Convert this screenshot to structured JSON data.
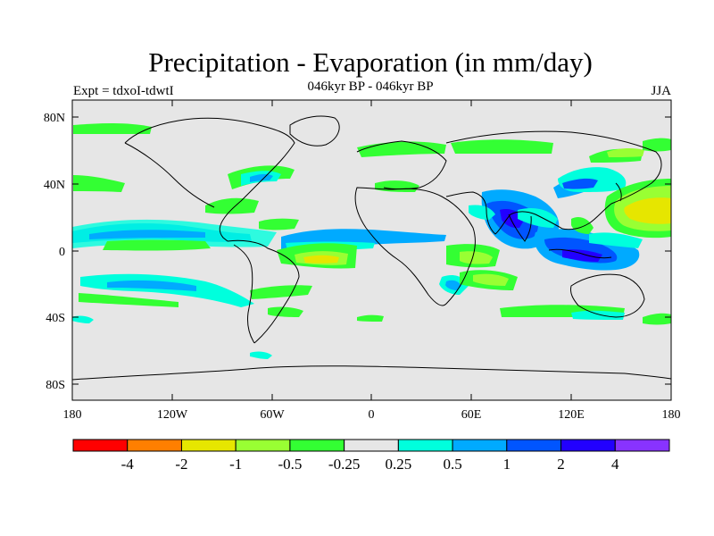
{
  "title": "Precipitation - Evaporation (in mm/day)",
  "subtitle": "046kyr BP - 046kyr BP",
  "left_label": "Expt = tdxoI-tdwtI",
  "right_label": "JJA",
  "lat_ticks": [
    "80N",
    "40N",
    "0",
    "40S",
    "80S"
  ],
  "lon_ticks": [
    "180",
    "120W",
    "60W",
    "0",
    "60E",
    "120E",
    "180"
  ],
  "colorbar": {
    "labels": [
      "-4",
      "-2",
      "-1",
      "-0.5",
      "-0.25",
      "0.25",
      "0.5",
      "1",
      "2",
      "4"
    ],
    "colors": [
      "#ff0000",
      "#ff7f00",
      "#e6e600",
      "#99ff33",
      "#33ff33",
      "#e6e6e6",
      "#00ffdd",
      "#00aaff",
      "#0055ff",
      "#2200ff",
      "#8833ff"
    ]
  },
  "map_colors": {
    "background": "#e6e6e6",
    "coast": "#000000"
  }
}
